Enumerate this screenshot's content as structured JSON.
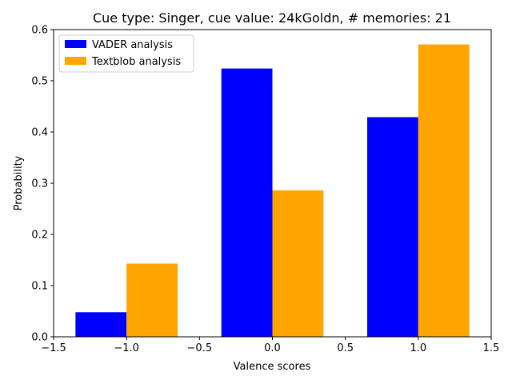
{
  "chart_data": {
    "type": "bar",
    "title": "Cue type: Singer, cue value: 24kGoldn, # memories: 21",
    "xlabel": "Valence scores",
    "ylabel": "Probability",
    "xlim": [
      -1.5,
      1.5
    ],
    "ylim": [
      0,
      0.6
    ],
    "x": [
      -1,
      0,
      1
    ],
    "bar_width": 0.35,
    "xticks": [
      -1.5,
      -1.0,
      -0.5,
      0.0,
      0.5,
      1.0,
      1.5
    ],
    "xtick_labels": [
      "−1.5",
      "−1.0",
      "−0.5",
      "0.0",
      "0.5",
      "1.0",
      "1.5"
    ],
    "yticks": [
      0.0,
      0.1,
      0.2,
      0.3,
      0.4,
      0.5,
      0.6
    ],
    "ytick_labels": [
      "0.0",
      "0.1",
      "0.2",
      "0.3",
      "0.4",
      "0.5",
      "0.6"
    ],
    "grid": false,
    "legend_position": "top-left",
    "series": [
      {
        "name": "VADER analysis",
        "color": "#0000ff",
        "values": [
          0.048,
          0.524,
          0.429
        ]
      },
      {
        "name": "Textblob analysis",
        "color": "#ffa500",
        "values": [
          0.143,
          0.286,
          0.571
        ]
      }
    ]
  }
}
